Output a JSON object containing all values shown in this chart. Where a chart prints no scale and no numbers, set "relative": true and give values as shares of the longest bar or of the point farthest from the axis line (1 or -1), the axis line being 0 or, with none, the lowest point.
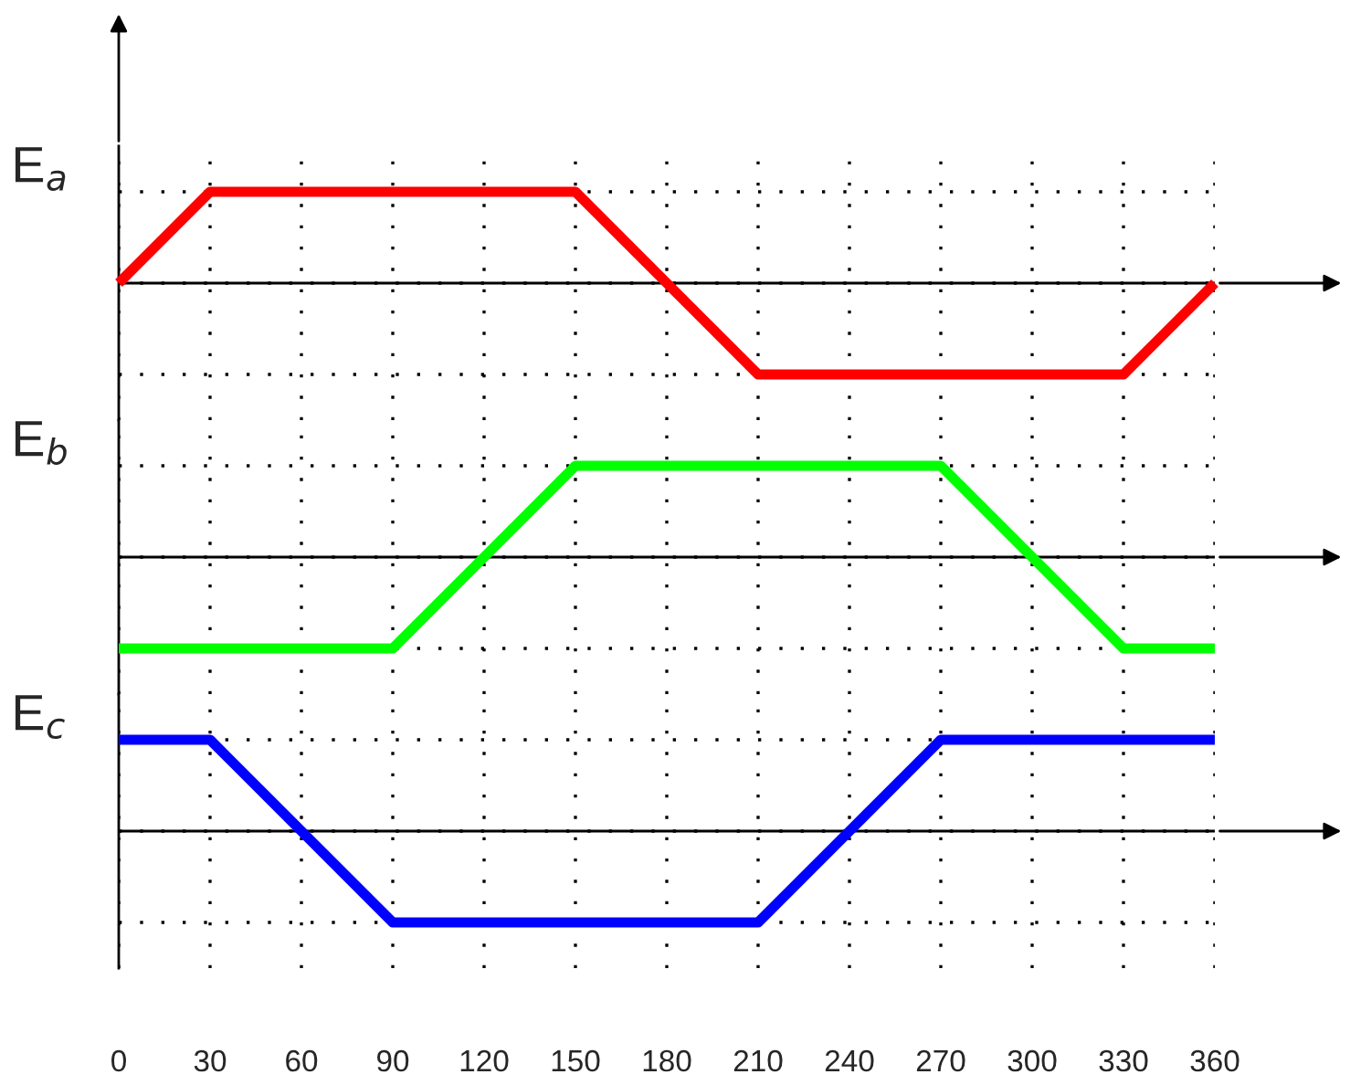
{
  "chart_data": [
    {
      "type": "line",
      "ylabel": "E$_{a}$",
      "relative": true,
      "x": [
        0,
        30,
        150,
        210,
        330,
        360
      ],
      "series": [
        {
          "color": "#ff0000",
          "values": [
            0,
            1,
            1,
            -1,
            -1,
            0
          ]
        }
      ],
      "xlim": [
        0,
        360
      ],
      "xticks": [
        0,
        30,
        60,
        90,
        120,
        150,
        180,
        210,
        240,
        270,
        300,
        330,
        360
      ],
      "grid": true,
      "tick_labels": false
    },
    {
      "type": "line",
      "ylabel": "E$_{b}$",
      "relative": true,
      "x": [
        0,
        90,
        150,
        270,
        330,
        360
      ],
      "series": [
        {
          "color": "#00ff00",
          "values": [
            -1,
            -1,
            1,
            1,
            -1,
            -1
          ]
        }
      ],
      "xlim": [
        0,
        360
      ],
      "xticks": [
        0,
        30,
        60,
        90,
        120,
        150,
        180,
        210,
        240,
        270,
        300,
        330,
        360
      ],
      "grid": true,
      "tick_labels": false
    },
    {
      "type": "line",
      "ylabel": "E$_{c}$",
      "relative": true,
      "x": [
        0,
        30,
        90,
        210,
        270,
        360
      ],
      "series": [
        {
          "color": "#0000ff",
          "values": [
            1,
            1,
            -1,
            -1,
            1,
            1
          ]
        }
      ],
      "xlim": [
        0,
        360
      ],
      "xticks": [
        0,
        30,
        60,
        90,
        120,
        150,
        180,
        210,
        240,
        270,
        300,
        330,
        360
      ],
      "grid": true,
      "tick_labels": "x"
    }
  ]
}
